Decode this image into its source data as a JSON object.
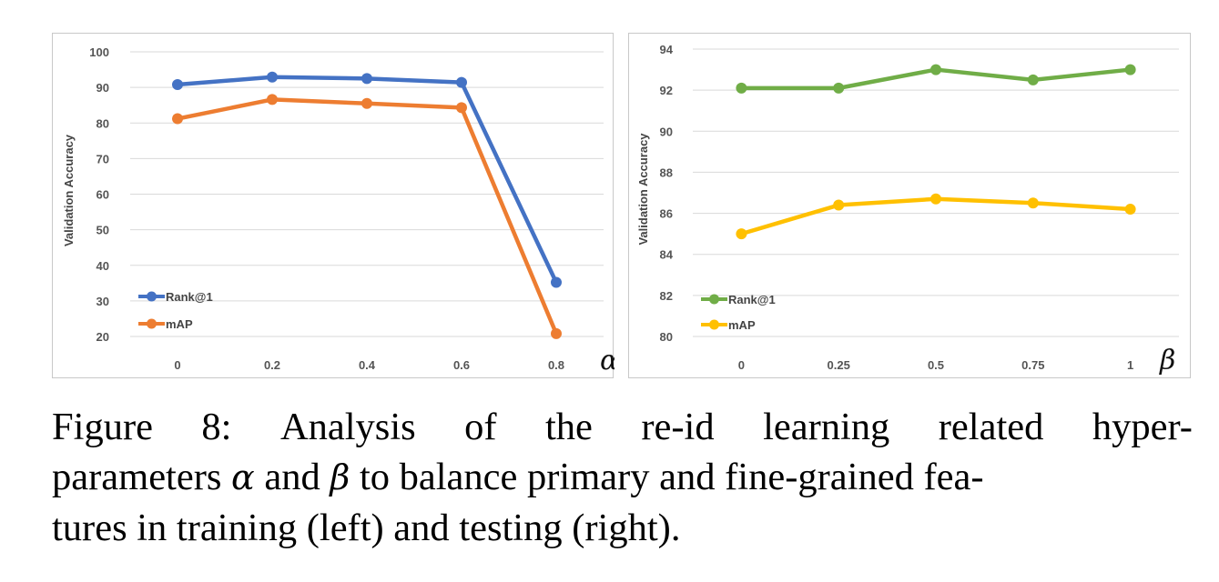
{
  "chart_data": [
    {
      "type": "line",
      "ylabel": "Validation Accuracy",
      "xlabel": "α",
      "categories": [
        "0",
        "0.2",
        "0.4",
        "0.6",
        "0.8"
      ],
      "yticks": [
        100,
        90,
        80,
        70,
        60,
        50,
        40,
        30,
        20
      ],
      "ylim": [
        20,
        100
      ],
      "grid": true,
      "legend": "bottom-left",
      "series": [
        {
          "name": "Rank@1",
          "color": "#4472c4",
          "values": [
            90.8,
            92.9,
            92.5,
            91.4,
            35.2
          ]
        },
        {
          "name": "mAP",
          "color": "#ed7d31",
          "values": [
            81.2,
            86.6,
            85.5,
            84.3,
            20.8
          ]
        }
      ]
    },
    {
      "type": "line",
      "ylabel": "Validation Accuracy",
      "xlabel": "β",
      "categories": [
        "0",
        "0.25",
        "0.5",
        "0.75",
        "1"
      ],
      "yticks": [
        94,
        92,
        90,
        88,
        86,
        84,
        82,
        80
      ],
      "ylim": [
        80,
        94
      ],
      "grid": true,
      "legend": "bottom-left",
      "series": [
        {
          "name": "Rank@1",
          "color": "#70ad47",
          "values": [
            92.1,
            92.1,
            93.0,
            92.5,
            93.0
          ]
        },
        {
          "name": "mAP",
          "color": "#ffc000",
          "values": [
            85.0,
            86.4,
            86.7,
            86.5,
            86.2
          ]
        }
      ]
    }
  ],
  "caption": {
    "line1": [
      "Figure",
      "8:",
      "Analysis",
      "of",
      "the",
      "re-id",
      "learning",
      "related",
      "hyper-"
    ],
    "line2_a": "parameters ",
    "alpha": "α",
    "line2_b": " and ",
    "beta": "β",
    "line2_c": " to balance primary and fine-grained fea-",
    "line3": "tures in training (left) and testing (right)."
  }
}
